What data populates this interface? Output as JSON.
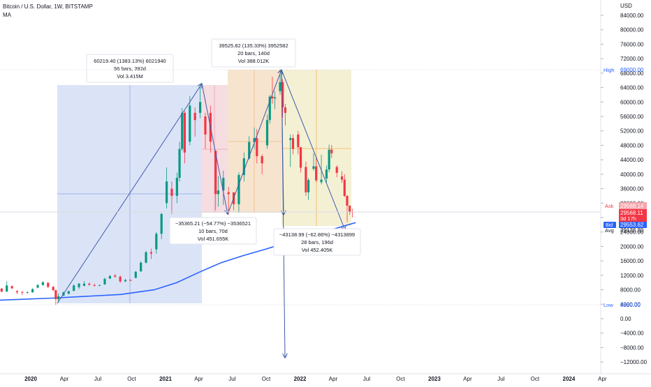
{
  "header": {
    "symbol_line": "Bitcoin / U.S. Dollar, 1W, BITSTAMP",
    "indicator": "MA"
  },
  "price_axis": {
    "currency": "USD",
    "ticks": [
      "84000.00",
      "80000.00",
      "76000.00",
      "72000.00",
      "68000.00",
      "64000.00",
      "60000.00",
      "56000.00",
      "52000.00",
      "48000.00",
      "44000.00",
      "40000.00",
      "36000.00",
      "32000.00",
      "28000.00",
      "24000.00",
      "20000.00",
      "16000.00",
      "12000.00",
      "8000.00",
      "4000.00",
      "0.00",
      "−4000.00",
      "−8000.00",
      "−12000.00"
    ]
  },
  "time_axis": {
    "ticks": [
      "2020",
      "Apr",
      "Jul",
      "Oct",
      "2021",
      "Apr",
      "Jul",
      "Oct",
      "2022",
      "Apr",
      "Jul",
      "Oct",
      "2023",
      "Apr",
      "Jul",
      "Oct",
      "2024",
      "Apr"
    ]
  },
  "markers": {
    "high_label": "High",
    "high_value": "69000.00",
    "low_label": "Low",
    "low_value": "3850.00",
    "ask_label": "Ask",
    "ask_value": "29568.14",
    "last_value": "29568.11",
    "countdown": "3d 17h",
    "bid_label": "Bid",
    "bid_value": "29553.62",
    "avg_label": "Avg",
    "avg_value": "29138.80"
  },
  "measurements": [
    {
      "line1": "60219.40 (1383.13%) 6021940",
      "line2": "56 bars, 392d",
      "line3": "Vol 3.415M",
      "color": "#2962ff"
    },
    {
      "line1": "−35365.21 (−54.77%) −3536521",
      "line2": "10 bars, 70d",
      "line3": "Vol 451.655K",
      "color": "#f23645"
    },
    {
      "line1": "39525.82 (135.33%) 3952582",
      "line2": "20 bars, 140d",
      "line3": "Vol 388.012K",
      "color": "#ff9800"
    },
    {
      "line1": "−43138.99 (−62.86%) −4313899",
      "line2": "28 bars, 196d",
      "line3": "Vol 452.405K",
      "color": "#e8d24a"
    }
  ],
  "colors": {
    "up": "#26a69a",
    "up_strong": "#089981",
    "down": "#f23645",
    "ma": "#2962ff",
    "arrow": "#3d5aa8",
    "bid_badge": "#2962ff",
    "ask_badge": "#f23645"
  },
  "chart_data": {
    "type": "candlestick",
    "ylim": [
      -14000,
      88000
    ],
    "candles": [
      {
        "date": "2019-09-09",
        "open": 10500,
        "close": 10300,
        "high": 10900,
        "low": 9900
      },
      {
        "date": "2019-09-23",
        "open": 9900,
        "close": 8200,
        "high": 10000,
        "low": 7900
      },
      {
        "date": "2019-10-14",
        "open": 8300,
        "close": 7500,
        "high": 8500,
        "low": 7300
      },
      {
        "date": "2019-10-28",
        "open": 7500,
        "close": 9200,
        "high": 10400,
        "low": 7400
      },
      {
        "date": "2019-11-11",
        "open": 9000,
        "close": 8400,
        "high": 9200,
        "low": 8200
      },
      {
        "date": "2019-11-25",
        "open": 7600,
        "close": 7300,
        "high": 7900,
        "low": 6800
      },
      {
        "date": "2019-12-09",
        "open": 7400,
        "close": 7200,
        "high": 7600,
        "low": 6500
      },
      {
        "date": "2019-12-23",
        "open": 7200,
        "close": 7300,
        "high": 7600,
        "low": 7000
      },
      {
        "date": "2020-01-06",
        "open": 7300,
        "close": 8200,
        "high": 8400,
        "low": 7200
      },
      {
        "date": "2020-01-20",
        "open": 8600,
        "close": 9300,
        "high": 9600,
        "low": 8400
      },
      {
        "date": "2020-02-03",
        "open": 9300,
        "close": 10100,
        "high": 10300,
        "low": 9200
      },
      {
        "date": "2020-02-17",
        "open": 9900,
        "close": 8800,
        "high": 10200,
        "low": 8500
      },
      {
        "date": "2020-03-02",
        "open": 8800,
        "close": 7900,
        "high": 9100,
        "low": 7600
      },
      {
        "date": "2020-03-09",
        "open": 7900,
        "close": 5400,
        "high": 8000,
        "low": 3850
      },
      {
        "date": "2020-03-16",
        "open": 5400,
        "close": 6200,
        "high": 6900,
        "low": 4500
      },
      {
        "date": "2020-03-30",
        "open": 6400,
        "close": 7300,
        "high": 7500,
        "low": 6200
      },
      {
        "date": "2020-04-13",
        "open": 6900,
        "close": 7600,
        "high": 7800,
        "low": 6800
      },
      {
        "date": "2020-04-27",
        "open": 7700,
        "close": 9200,
        "high": 9500,
        "low": 7600
      },
      {
        "date": "2020-05-11",
        "open": 8700,
        "close": 9700,
        "high": 9900,
        "low": 8200
      },
      {
        "date": "2020-05-25",
        "open": 9100,
        "close": 9700,
        "high": 10400,
        "low": 9000
      },
      {
        "date": "2020-06-08",
        "open": 9700,
        "close": 9400,
        "high": 10000,
        "low": 9100
      },
      {
        "date": "2020-06-22",
        "open": 9300,
        "close": 9100,
        "high": 9700,
        "low": 8900
      },
      {
        "date": "2020-07-06",
        "open": 9100,
        "close": 9300,
        "high": 9400,
        "low": 9000
      },
      {
        "date": "2020-07-20",
        "open": 9500,
        "close": 11000,
        "high": 11400,
        "low": 9400
      },
      {
        "date": "2020-08-03",
        "open": 11100,
        "close": 11800,
        "high": 12100,
        "low": 11000
      },
      {
        "date": "2020-08-17",
        "open": 11900,
        "close": 11600,
        "high": 12400,
        "low": 11400
      },
      {
        "date": "2020-08-31",
        "open": 11600,
        "close": 10300,
        "high": 12000,
        "low": 9900
      },
      {
        "date": "2020-09-14",
        "open": 10300,
        "close": 10700,
        "high": 11000,
        "low": 10200
      },
      {
        "date": "2020-09-28",
        "open": 10700,
        "close": 10600,
        "high": 10900,
        "low": 10400
      },
      {
        "date": "2020-10-12",
        "open": 11300,
        "close": 13000,
        "high": 13200,
        "low": 11200
      },
      {
        "date": "2020-10-26",
        "open": 13100,
        "close": 15500,
        "high": 15900,
        "low": 13000
      },
      {
        "date": "2020-11-09",
        "open": 15500,
        "close": 18400,
        "high": 18800,
        "low": 15300
      },
      {
        "date": "2020-11-23",
        "open": 18400,
        "close": 18000,
        "high": 19400,
        "low": 16500
      },
      {
        "date": "2020-12-07",
        "open": 19200,
        "close": 23500,
        "high": 24000,
        "low": 18000
      },
      {
        "date": "2020-12-21",
        "open": 23500,
        "close": 29000,
        "high": 29300,
        "low": 22000
      },
      {
        "date": "2021-01-04",
        "open": 32000,
        "close": 38000,
        "high": 41900,
        "low": 30500
      },
      {
        "date": "2021-01-18",
        "open": 36000,
        "close": 34000,
        "high": 38000,
        "low": 29000
      },
      {
        "date": "2021-02-01",
        "open": 34000,
        "close": 39000,
        "high": 40500,
        "low": 32000
      },
      {
        "date": "2021-02-08",
        "open": 39000,
        "close": 47000,
        "high": 49000,
        "low": 38000
      },
      {
        "date": "2021-02-15",
        "open": 47000,
        "close": 57000,
        "high": 58300,
        "low": 46500
      },
      {
        "date": "2021-02-22",
        "open": 57000,
        "close": 46000,
        "high": 57500,
        "low": 43000
      },
      {
        "date": "2021-03-08",
        "open": 49000,
        "close": 59000,
        "high": 61700,
        "low": 48000
      },
      {
        "date": "2021-03-22",
        "open": 57000,
        "close": 55000,
        "high": 58500,
        "low": 50400
      },
      {
        "date": "2021-04-05",
        "open": 57000,
        "close": 60000,
        "high": 64800,
        "low": 55500
      },
      {
        "date": "2021-04-19",
        "open": 56000,
        "close": 51000,
        "high": 57000,
        "low": 47000
      },
      {
        "date": "2021-05-03",
        "open": 57000,
        "close": 49000,
        "high": 59000,
        "low": 46000
      },
      {
        "date": "2021-05-17",
        "open": 46500,
        "close": 34500,
        "high": 46600,
        "low": 30000
      },
      {
        "date": "2021-05-24",
        "open": 34500,
        "close": 35500,
        "high": 39500,
        "low": 31000
      },
      {
        "date": "2021-06-07",
        "open": 35500,
        "close": 39000,
        "high": 41000,
        "low": 31500
      },
      {
        "date": "2021-06-21",
        "open": 35000,
        "close": 34500,
        "high": 36500,
        "low": 28800
      },
      {
        "date": "2021-07-05",
        "open": 35000,
        "close": 31700,
        "high": 35000,
        "low": 30000
      },
      {
        "date": "2021-07-19",
        "open": 31700,
        "close": 39800,
        "high": 40500,
        "low": 29300
      },
      {
        "date": "2021-08-02",
        "open": 39800,
        "close": 44400,
        "high": 46000,
        "low": 38000
      },
      {
        "date": "2021-08-16",
        "open": 44400,
        "close": 48900,
        "high": 50500,
        "low": 44000
      },
      {
        "date": "2021-08-30",
        "open": 48900,
        "close": 50000,
        "high": 52900,
        "low": 47000
      },
      {
        "date": "2021-09-06",
        "open": 50000,
        "close": 45000,
        "high": 52500,
        "low": 43000
      },
      {
        "date": "2021-09-20",
        "open": 45000,
        "close": 43000,
        "high": 45500,
        "low": 40000
      },
      {
        "date": "2021-10-04",
        "open": 48000,
        "close": 55000,
        "high": 56500,
        "low": 47000
      },
      {
        "date": "2021-10-11",
        "open": 55000,
        "close": 61500,
        "high": 62000,
        "low": 54000
      },
      {
        "date": "2021-10-18",
        "open": 61500,
        "close": 61000,
        "high": 67000,
        "low": 59500
      },
      {
        "date": "2021-10-25",
        "open": 61000,
        "close": 61300,
        "high": 63000,
        "low": 58000
      },
      {
        "date": "2021-11-08",
        "open": 63000,
        "close": 65500,
        "high": 69000,
        "low": 62000
      },
      {
        "date": "2021-11-15",
        "open": 65500,
        "close": 58500,
        "high": 66300,
        "low": 55700
      },
      {
        "date": "2021-11-22",
        "open": 58500,
        "close": 57000,
        "high": 59500,
        "low": 53500
      },
      {
        "date": "2021-12-06",
        "open": 49500,
        "close": 50000,
        "high": 51000,
        "low": 42000
      },
      {
        "date": "2021-12-13",
        "open": 50000,
        "close": 47000,
        "high": 51000,
        "low": 45500
      },
      {
        "date": "2021-12-27",
        "open": 51000,
        "close": 47500,
        "high": 52000,
        "low": 45500
      },
      {
        "date": "2022-01-03",
        "open": 47500,
        "close": 41800,
        "high": 47500,
        "low": 40500
      },
      {
        "date": "2022-01-17",
        "open": 42000,
        "close": 35000,
        "high": 43500,
        "low": 34000
      },
      {
        "date": "2022-01-24",
        "open": 35000,
        "close": 38400,
        "high": 38900,
        "low": 32900
      },
      {
        "date": "2022-02-07",
        "open": 41500,
        "close": 42200,
        "high": 45800,
        "low": 41000
      },
      {
        "date": "2022-02-14",
        "open": 42200,
        "close": 38300,
        "high": 44700,
        "low": 37800
      },
      {
        "date": "2022-02-28",
        "open": 37800,
        "close": 38500,
        "high": 45400,
        "low": 37200
      },
      {
        "date": "2022-03-14",
        "open": 38800,
        "close": 41300,
        "high": 42400,
        "low": 37600
      },
      {
        "date": "2022-03-21",
        "open": 41300,
        "close": 46800,
        "high": 48200,
        "low": 40500
      },
      {
        "date": "2022-03-28",
        "open": 46800,
        "close": 45800,
        "high": 48100,
        "low": 44500
      },
      {
        "date": "2022-04-11",
        "open": 42000,
        "close": 40400,
        "high": 42500,
        "low": 39200
      },
      {
        "date": "2022-04-25",
        "open": 39400,
        "close": 38500,
        "high": 40800,
        "low": 37600
      },
      {
        "date": "2022-05-02",
        "open": 38500,
        "close": 34000,
        "high": 40000,
        "low": 33700
      },
      {
        "date": "2022-05-09",
        "open": 34000,
        "close": 31300,
        "high": 34200,
        "low": 26700
      },
      {
        "date": "2022-05-16",
        "open": 31300,
        "close": 29600,
        "high": 31300,
        "low": 28800
      },
      {
        "date": "2022-05-23",
        "open": 29600,
        "close": 29568,
        "high": 30400,
        "low": 28000
      }
    ],
    "moving_average": [
      {
        "date": "2019-09-09",
        "value": 5000
      },
      {
        "date": "2020-03-01",
        "value": 5700
      },
      {
        "date": "2020-09-01",
        "value": 6700
      },
      {
        "date": "2020-12-01",
        "value": 8000
      },
      {
        "date": "2021-02-01",
        "value": 10000
      },
      {
        "date": "2021-04-01",
        "value": 12800
      },
      {
        "date": "2021-06-01",
        "value": 15500
      },
      {
        "date": "2021-08-01",
        "value": 17500
      },
      {
        "date": "2021-10-01",
        "value": 19300
      },
      {
        "date": "2021-12-01",
        "value": 21200
      },
      {
        "date": "2022-02-01",
        "value": 23000
      },
      {
        "date": "2022-04-01",
        "value": 24800
      },
      {
        "date": "2022-06-01",
        "value": 26600
      }
    ]
  }
}
